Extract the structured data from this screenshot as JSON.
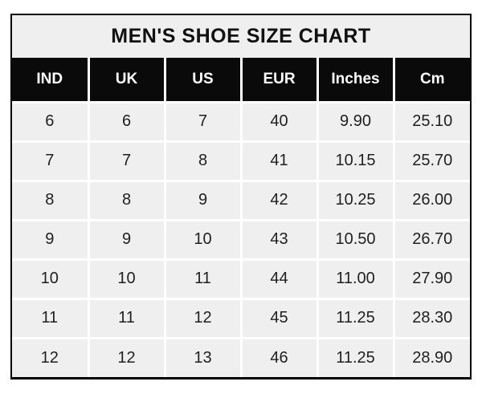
{
  "title": "MEN'S SHOE SIZE CHART",
  "colors": {
    "header_bg": "#0a0a0a",
    "header_text": "#ffffff",
    "cell_bg": "#efefef",
    "separator": "#ffffff",
    "border": "#000000",
    "text": "#1f1f1f",
    "page_bg": "#ffffff"
  },
  "chart_data": {
    "type": "table",
    "title": "MEN'S SHOE SIZE CHART",
    "columns": [
      "IND",
      "UK",
      "US",
      "EUR",
      "Inches",
      "Cm"
    ],
    "rows": [
      [
        "6",
        "6",
        "7",
        "40",
        "9.90",
        "25.10"
      ],
      [
        "7",
        "7",
        "8",
        "41",
        "10.15",
        "25.70"
      ],
      [
        "8",
        "8",
        "9",
        "42",
        "10.25",
        "26.00"
      ],
      [
        "9",
        "9",
        "10",
        "43",
        "10.50",
        "26.70"
      ],
      [
        "10",
        "10",
        "11",
        "44",
        "11.00",
        "27.90"
      ],
      [
        "11",
        "11",
        "12",
        "45",
        "11.25",
        "28.30"
      ],
      [
        "12",
        "12",
        "13",
        "46",
        "11.25",
        "28.90"
      ]
    ]
  }
}
